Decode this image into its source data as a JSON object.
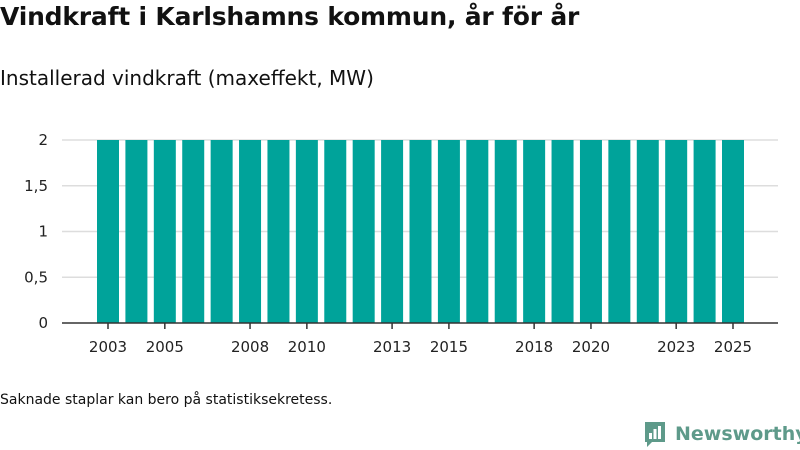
{
  "title": "Vindkraft i Karlshamns kommun, år för år",
  "subtitle": "Installerad vindkraft (maxeffekt, MW)",
  "note": "Saknade staplar kan bero på statistiksekretess.",
  "brand": "Newsworthy",
  "colors": {
    "bar": "#00a39a",
    "grid": "#dddddd",
    "axis": "#333333",
    "brand": "#5e9a8a"
  },
  "chart_data": {
    "type": "bar",
    "title": "Installerad vindkraft (maxeffekt, MW)",
    "xlabel": "",
    "ylabel": "",
    "categories": [
      "2003",
      "2004",
      "2005",
      "2006",
      "2007",
      "2008",
      "2009",
      "2010",
      "2011",
      "2012",
      "2013",
      "2014",
      "2015",
      "2016",
      "2017",
      "2018",
      "2019",
      "2020",
      "2021",
      "2022",
      "2023",
      "2024",
      "2025"
    ],
    "values": [
      2,
      2,
      2,
      2,
      2,
      2,
      2,
      2,
      2,
      2,
      2,
      2,
      2,
      2,
      2,
      2,
      2,
      2,
      2,
      2,
      2,
      2,
      2
    ],
    "ylim": [
      0,
      2
    ],
    "yticks": [
      {
        "value": 0,
        "label": "0"
      },
      {
        "value": 0.5,
        "label": "0,5"
      },
      {
        "value": 1,
        "label": "1"
      },
      {
        "value": 1.5,
        "label": "1,5"
      },
      {
        "value": 2,
        "label": "2"
      }
    ],
    "xtick_labels": [
      "2003",
      "2005",
      "2008",
      "2010",
      "2013",
      "2015",
      "2018",
      "2020",
      "2023",
      "2025"
    ],
    "grid": true
  }
}
